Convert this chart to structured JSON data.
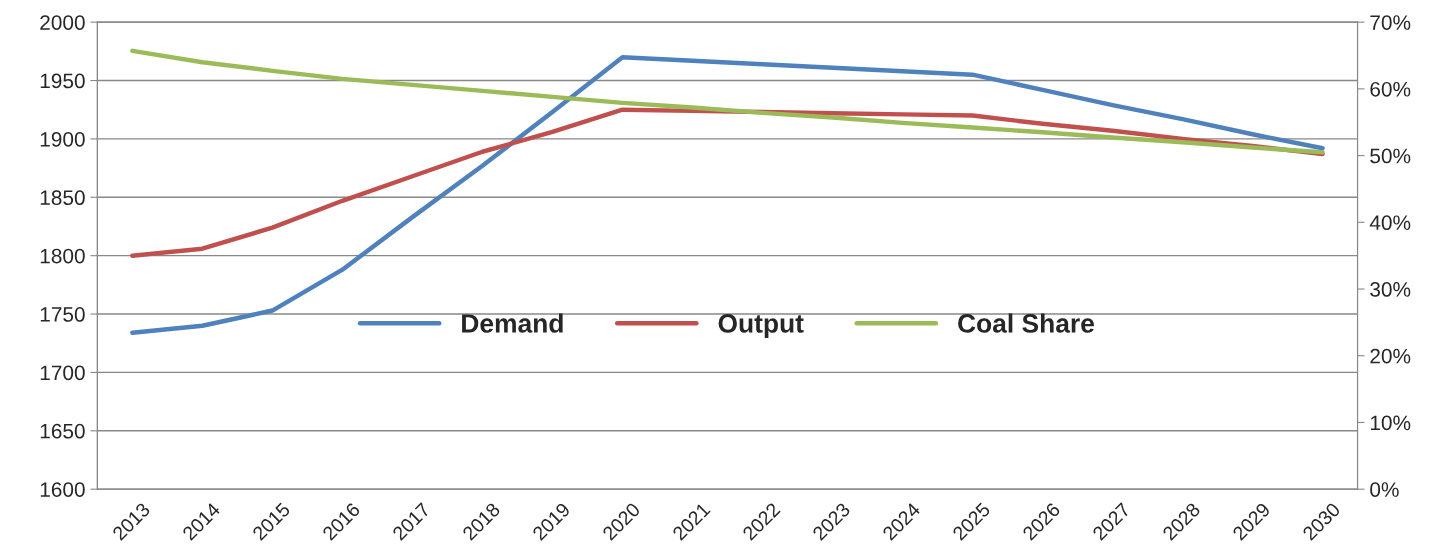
{
  "chart_data": {
    "type": "line",
    "categories": [
      "2013",
      "2014",
      "2015",
      "2016",
      "2017",
      "2018",
      "2019",
      "2020",
      "2021",
      "2022",
      "2023",
      "2024",
      "2025",
      "2026",
      "2027",
      "2028",
      "2029",
      "2030"
    ],
    "series": [
      {
        "name": "Demand",
        "color": "#4f81bd",
        "values": [
          1734,
          1740,
          1753,
          1788,
          1833,
          1877,
          1923,
          1970,
          1967,
          1964,
          1961,
          1958,
          1955,
          1942,
          1929,
          1917,
          1904,
          1892
        ]
      },
      {
        "name": "Output",
        "color": "#c0504d",
        "values": [
          1800,
          1806,
          1824,
          1847,
          1868,
          1889,
          1906,
          1925,
          1924,
          1923,
          1922,
          1921,
          1920,
          1913,
          1907,
          1900,
          1894,
          1887
        ]
      },
      {
        "name": "Coal Share",
        "color": "#9bbb59",
        "axis": "y2",
        "values": [
          65.7,
          64.0,
          62.7,
          61.5,
          60.6,
          59.7,
          58.8,
          57.9,
          57.2,
          56.4,
          55.7,
          54.9,
          54.2,
          53.5,
          52.7,
          52.0,
          51.2,
          50.5
        ]
      }
    ],
    "ylim": [
      1600,
      2000
    ],
    "yticks": [
      1600,
      1650,
      1700,
      1750,
      1800,
      1850,
      1900,
      1950,
      2000
    ],
    "y2lim": [
      0,
      70
    ],
    "y2ticks": [
      {
        "value": 0,
        "label": "0%"
      },
      {
        "value": 10,
        "label": "10%"
      },
      {
        "value": 20,
        "label": "20%"
      },
      {
        "value": 30,
        "label": "30%"
      },
      {
        "value": 40,
        "label": "40%"
      },
      {
        "value": 50,
        "label": "50%"
      },
      {
        "value": 60,
        "label": "60%"
      },
      {
        "value": 70,
        "label": "70%"
      }
    ],
    "grid": "y",
    "legend": "center",
    "marker": "none",
    "line_style": "solid"
  }
}
